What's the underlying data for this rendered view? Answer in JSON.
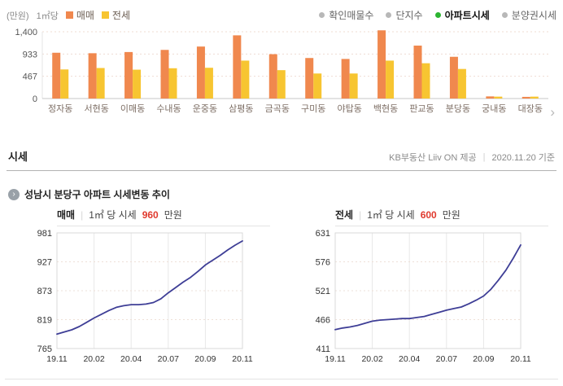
{
  "bar_section": {
    "unit_label": "(만원)",
    "per_label": "1㎡당",
    "scroll_next": "›"
  },
  "filters": {
    "active_dot_color": "#2CB431",
    "inactive_dot_color": "#b8b8b8",
    "items": [
      {
        "label": "확인매물수",
        "active": false
      },
      {
        "label": "단지수",
        "active": false
      },
      {
        "label": "아파트시세",
        "active": true
      },
      {
        "label": "분양권시세",
        "active": false
      }
    ]
  },
  "sise_header": {
    "title": "시세",
    "source": "KB부동산 Liiv ON 제공",
    "separator": "|",
    "date": "2020.11.20 기준"
  },
  "trend_header": {
    "title": "성남시 분당구 아파트 시세변동 추이"
  },
  "trend_cards": [
    {
      "name": "매매",
      "separator": "|",
      "price_label": "1㎡ 당 시세",
      "price": "960",
      "unit": "만원",
      "price_color": "#E03A2E"
    },
    {
      "name": "전세",
      "separator": "|",
      "price_label": "1㎡ 당 시세",
      "price": "600",
      "unit": "만원",
      "price_color": "#E03A2E"
    }
  ],
  "chart_data": [
    {
      "type": "bar",
      "categories": [
        "정자동",
        "서현동",
        "이매동",
        "수내동",
        "운중동",
        "삼평동",
        "금곡동",
        "구미동",
        "야탑동",
        "백현동",
        "판교동",
        "분당동",
        "궁내동",
        "대장동"
      ],
      "series": [
        {
          "name": "매매",
          "color": "#F0884E",
          "values": [
            960,
            950,
            975,
            1020,
            1090,
            1325,
            930,
            850,
            830,
            1430,
            1110,
            875,
            45,
            35
          ]
        },
        {
          "name": "전세",
          "color": "#F7C531",
          "values": [
            610,
            640,
            605,
            635,
            645,
            795,
            595,
            525,
            525,
            795,
            740,
            620,
            40,
            40
          ]
        }
      ],
      "y_ticks": [
        1400,
        933,
        467,
        0
      ],
      "ylim": [
        0,
        1400
      ],
      "ylabel": "(만원) 1㎡당",
      "legend_position": "top-left",
      "grid": "dotted-horizontal"
    },
    {
      "type": "line",
      "name": "매매",
      "x_ticks": [
        "19.11",
        "20.02",
        "20.04",
        "20.07",
        "20.09",
        "20.11"
      ],
      "y_ticks": [
        981,
        927,
        873,
        819,
        765
      ],
      "ylim": [
        765,
        981
      ],
      "xlim_labels": [
        "19.11",
        "20.11"
      ],
      "line_color": "#3E3E96",
      "values": [
        792,
        796,
        800,
        806,
        814,
        822,
        829,
        836,
        842,
        845,
        847,
        847,
        848,
        851,
        858,
        869,
        879,
        889,
        898,
        909,
        921,
        930,
        939,
        949,
        958,
        966
      ]
    },
    {
      "type": "line",
      "name": "전세",
      "x_ticks": [
        "19.11",
        "20.02",
        "20.04",
        "20.07",
        "20.09",
        "20.11"
      ],
      "y_ticks": [
        631,
        576,
        521,
        466,
        411
      ],
      "ylim": [
        411,
        631
      ],
      "xlim_labels": [
        "19.11",
        "20.11"
      ],
      "line_color": "#3E3E96",
      "values": [
        447,
        450,
        452,
        455,
        459,
        463,
        465,
        466,
        467,
        468,
        468,
        470,
        472,
        476,
        480,
        484,
        487,
        490,
        496,
        503,
        511,
        524,
        541,
        560,
        583,
        608
      ]
    }
  ]
}
